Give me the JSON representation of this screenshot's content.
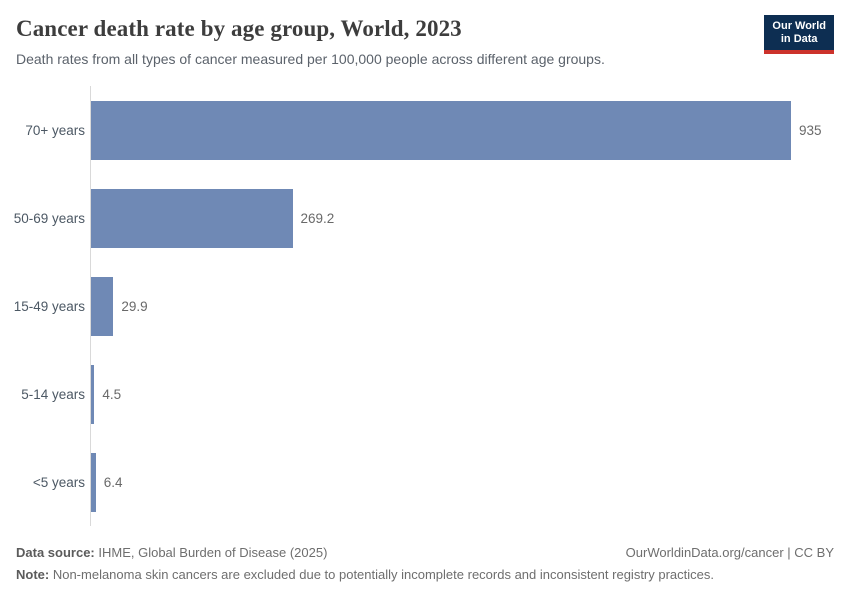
{
  "header": {
    "title": "Cancer death rate by age group, World, 2023",
    "subtitle": "Death rates from all types of cancer measured per 100,000 people across different age groups.",
    "logo": {
      "line1": "Our World",
      "line2": "in Data",
      "bg_color": "#0d2e52",
      "accent_color": "#cc322b"
    }
  },
  "chart_data": {
    "type": "bar",
    "orientation": "horizontal",
    "title": "Cancer death rate by age group, World, 2023",
    "subtitle": "Death rates from all types of cancer measured per 100,000 people across different age groups.",
    "categories": [
      "70+ years",
      "50-69 years",
      "15-49 years",
      "5-14 years",
      "<5 years"
    ],
    "values": [
      935,
      269.2,
      29.9,
      4.5,
      6.4
    ],
    "values_display": [
      "935",
      "269.2",
      "29.9",
      "4.5",
      "6.4"
    ],
    "xlabel": "",
    "ylabel": "",
    "xlim": [
      0,
      935
    ],
    "unit": "deaths per 100,000 people",
    "bar_color": "#6f89b5",
    "axis_line_color": "#d9d9d9",
    "grid": false,
    "legend": "none",
    "value_labels_shown": true
  },
  "footer": {
    "datasource_label": "Data source:",
    "datasource_text": " IHME, Global Burden of Disease (2025)",
    "link_text": "OurWorldinData.org/cancer | CC BY",
    "note_label": "Note:",
    "note_text": " Non-melanoma skin cancers are excluded due to potentially incomplete records and inconsistent registry practices."
  }
}
